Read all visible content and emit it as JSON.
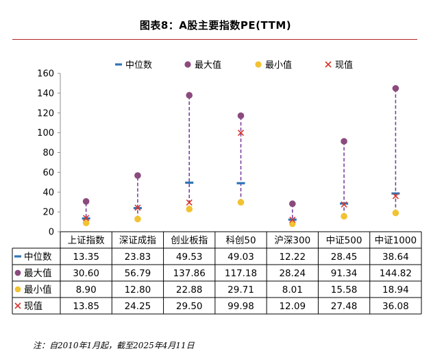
{
  "title": "图表8：A股主要指数PE(TTM)",
  "note": "注：自2010年1月起，截至2025年4月11日",
  "chart_data": {
    "type": "table",
    "categories": [
      "上证指数",
      "深证成指",
      "创业板指",
      "科创50",
      "沪深300",
      "中证500",
      "中证1000"
    ],
    "series": [
      {
        "name": "中位数",
        "marker": "dash",
        "color": "#2e75b6",
        "values": [
          13.35,
          23.83,
          49.53,
          49.03,
          12.22,
          28.45,
          38.64
        ],
        "labels": [
          "13.35",
          "23.83",
          "49.53",
          "49.03",
          "12.22",
          "28.45",
          "38.64"
        ]
      },
      {
        "name": "最大值",
        "marker": "circle",
        "color": "#8b4a7e",
        "values": [
          30.6,
          56.79,
          137.86,
          117.18,
          28.24,
          91.34,
          144.82
        ],
        "labels": [
          "30.60",
          "56.79",
          "137.86",
          "117.18",
          "28.24",
          "91.34",
          "144.82"
        ]
      },
      {
        "name": "最小值",
        "marker": "circle",
        "color": "#f2c232",
        "values": [
          8.9,
          12.8,
          22.88,
          29.71,
          8.01,
          15.58,
          18.94
        ],
        "labels": [
          "8.90",
          "12.80",
          "22.88",
          "29.71",
          "8.01",
          "15.58",
          "18.94"
        ]
      },
      {
        "name": "现值",
        "marker": "x",
        "color": "#d9342b",
        "values": [
          13.85,
          24.25,
          29.5,
          99.98,
          12.09,
          27.48,
          36.08
        ],
        "labels": [
          "13.85",
          "24.25",
          "29.50",
          "99.98",
          "12.09",
          "27.48",
          "36.08"
        ]
      }
    ],
    "range_line_color": "#7b3fa0",
    "ylim": [
      0,
      160
    ],
    "yticks": [
      "0",
      "20",
      "40",
      "60",
      "80",
      "100",
      "120",
      "140",
      "160"
    ],
    "legend_position": "top",
    "grid": false,
    "data_table": true
  }
}
